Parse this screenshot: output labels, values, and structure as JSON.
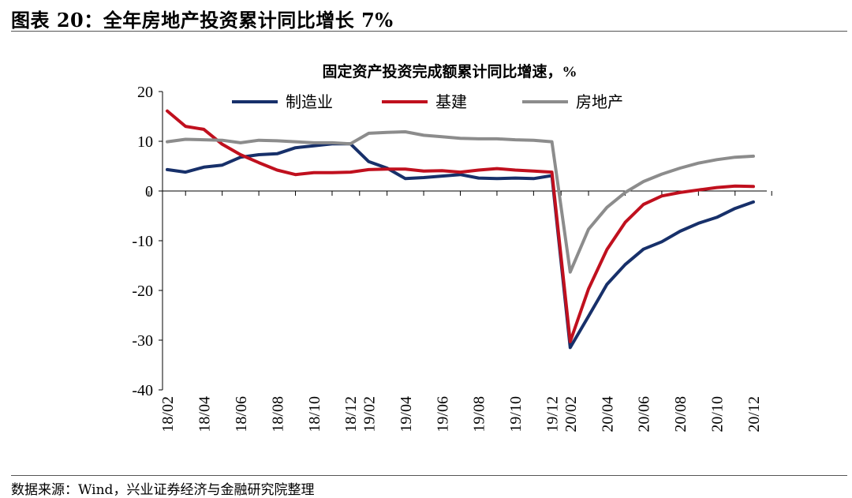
{
  "figure": {
    "header": "图表 20：全年房地产投资累计同比增长 7%",
    "source": "数据来源：Wind，兴业证券经济与金融研究院整理"
  },
  "chart_data": {
    "type": "line",
    "title": "固定资产投资完成额累计同比增速，%",
    "xlabel": "",
    "ylabel": "",
    "ylim": [
      -40,
      20
    ],
    "yticks": [
      -40,
      -30,
      -20,
      -10,
      0,
      10,
      20
    ],
    "grid": false,
    "legend_position": "top",
    "x": [
      "18/02",
      "18/03",
      "18/04",
      "18/05",
      "18/06",
      "18/07",
      "18/08",
      "18/09",
      "18/10",
      "18/11",
      "18/12",
      "19/02",
      "19/03",
      "19/04",
      "19/05",
      "19/06",
      "19/07",
      "19/08",
      "19/09",
      "19/10",
      "19/11",
      "19/12",
      "20/02",
      "20/03",
      "20/04",
      "20/05",
      "20/06",
      "20/07",
      "20/08",
      "20/09",
      "20/10",
      "20/11",
      "20/12"
    ],
    "xtick_labels": [
      "18/02",
      "18/04",
      "18/06",
      "18/08",
      "18/10",
      "18/12",
      "19/02",
      "19/04",
      "19/06",
      "19/08",
      "19/10",
      "19/12",
      "20/02",
      "20/04",
      "20/06",
      "20/08",
      "20/10",
      "20/12"
    ],
    "series": [
      {
        "name": "制造业",
        "color": "#17306a",
        "values": [
          4.3,
          3.8,
          4.8,
          5.2,
          6.8,
          7.3,
          7.5,
          8.7,
          9.1,
          9.5,
          9.5,
          5.9,
          4.6,
          2.5,
          2.7,
          3.0,
          3.3,
          2.6,
          2.5,
          2.6,
          2.5,
          3.1,
          -31.5,
          -25.2,
          -18.8,
          -14.8,
          -11.7,
          -10.2,
          -8.1,
          -6.5,
          -5.3,
          -3.5,
          -2.2
        ]
      },
      {
        "name": "基建",
        "color": "#c0101e",
        "values": [
          16.1,
          13.0,
          12.4,
          9.4,
          7.3,
          5.7,
          4.2,
          3.3,
          3.7,
          3.7,
          3.8,
          4.3,
          4.4,
          4.4,
          4.0,
          4.1,
          3.8,
          4.2,
          4.5,
          4.2,
          4.0,
          3.8,
          -30.3,
          -19.7,
          -11.8,
          -6.3,
          -2.7,
          -1.0,
          -0.3,
          0.2,
          0.7,
          1.0,
          0.9
        ]
      },
      {
        "name": "房地产",
        "color": "#8c8c8c",
        "values": [
          9.9,
          10.4,
          10.3,
          10.2,
          9.7,
          10.2,
          10.1,
          9.9,
          9.7,
          9.7,
          9.5,
          11.6,
          11.8,
          11.9,
          11.2,
          10.9,
          10.6,
          10.5,
          10.5,
          10.3,
          10.2,
          9.9,
          -16.3,
          -7.7,
          -3.3,
          -0.3,
          1.9,
          3.4,
          4.6,
          5.6,
          6.3,
          6.8,
          7.0
        ]
      }
    ]
  }
}
